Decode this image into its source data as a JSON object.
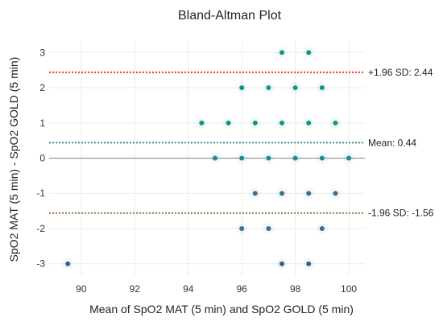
{
  "chart_data": {
    "type": "scatter",
    "title": "Bland-Altman Plot",
    "xlabel": "Mean of SpO2 MAT (5 min) and SpO2 GOLD (5 min)",
    "ylabel": "SpO2 MAT (5 min) - SpO2 GOLD (5 min)",
    "xlim": [
      88.8,
      100.6
    ],
    "ylim": [
      -3.35,
      3.35
    ],
    "x_ticks": [
      90,
      92,
      94,
      96,
      98,
      100
    ],
    "y_ticks": [
      -3,
      -2,
      -1,
      0,
      1,
      2,
      3
    ],
    "grid": true,
    "reference_lines": [
      {
        "y": 2.44,
        "label": "+1.96 SD: 2.44",
        "color": "#ee2222",
        "style": "dotted"
      },
      {
        "y": 0.44,
        "label": "Mean: 0.44",
        "color": "#2a7890",
        "style": "dotted"
      },
      {
        "y": -1.56,
        "label": "-1.96 SD: -1.56",
        "color": "#8a5a20",
        "style": "dotted"
      }
    ],
    "zero_line": {
      "y": 0,
      "color": "#999999"
    },
    "points": [
      {
        "x": 97.5,
        "y": 3,
        "color": "#129487"
      },
      {
        "x": 98.5,
        "y": 3,
        "color": "#129487"
      },
      {
        "x": 96,
        "y": 2,
        "color": "#129487"
      },
      {
        "x": 97,
        "y": 2,
        "color": "#129487"
      },
      {
        "x": 98,
        "y": 2,
        "color": "#129487"
      },
      {
        "x": 99,
        "y": 2,
        "color": "#129487"
      },
      {
        "x": 94.5,
        "y": 1,
        "color": "#129487"
      },
      {
        "x": 95.5,
        "y": 1,
        "color": "#129487"
      },
      {
        "x": 96.5,
        "y": 1,
        "color": "#129487"
      },
      {
        "x": 97.5,
        "y": 1,
        "color": "#129487"
      },
      {
        "x": 98.5,
        "y": 1,
        "color": "#129487"
      },
      {
        "x": 99.5,
        "y": 1,
        "color": "#129487"
      },
      {
        "x": 95,
        "y": 0,
        "color": "#1d8a8c"
      },
      {
        "x": 96,
        "y": 0,
        "color": "#1d8a8c"
      },
      {
        "x": 97,
        "y": 0,
        "color": "#1d8a8c"
      },
      {
        "x": 98,
        "y": 0,
        "color": "#1d8a8c"
      },
      {
        "x": 99,
        "y": 0,
        "color": "#1d8a8c"
      },
      {
        "x": 100,
        "y": 0,
        "color": "#1d8a8c"
      },
      {
        "x": 96.5,
        "y": -1,
        "color": "#3a6f8c"
      },
      {
        "x": 97.5,
        "y": -1,
        "color": "#3a6f8c"
      },
      {
        "x": 98.5,
        "y": -1,
        "color": "#3a6f8c"
      },
      {
        "x": 99.5,
        "y": -1,
        "color": "#3a6f8c"
      },
      {
        "x": 96,
        "y": -2,
        "color": "#3a6f8c"
      },
      {
        "x": 97,
        "y": -2,
        "color": "#3a6f8c"
      },
      {
        "x": 99,
        "y": -2,
        "color": "#3a6f8c"
      },
      {
        "x": 89.5,
        "y": -3,
        "color": "#3f5f80"
      },
      {
        "x": 97.5,
        "y": -3,
        "color": "#3f5f80"
      },
      {
        "x": 98.5,
        "y": -3,
        "color": "#3f5f80"
      }
    ]
  }
}
